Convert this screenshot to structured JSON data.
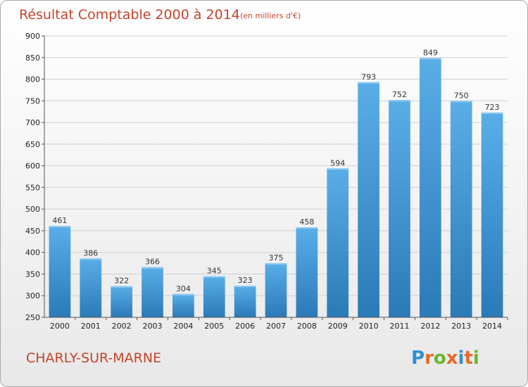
{
  "chart_data": {
    "type": "bar",
    "title": "Résultat Comptable 2000 à 2014",
    "subtitle": "(en milliers d'€)",
    "categories": [
      "2000",
      "2001",
      "2002",
      "2003",
      "2004",
      "2005",
      "2006",
      "2007",
      "2008",
      "2009",
      "2010",
      "2011",
      "2012",
      "2013",
      "2014"
    ],
    "values": [
      461,
      386,
      322,
      366,
      304,
      345,
      323,
      375,
      458,
      594,
      793,
      752,
      849,
      750,
      723
    ],
    "ylim": [
      250,
      900
    ],
    "yticks": [
      250,
      300,
      350,
      400,
      450,
      500,
      550,
      600,
      650,
      700,
      750,
      800,
      850,
      900
    ],
    "grid": true,
    "bar_color_top": "#5aaee8",
    "bar_color_bottom": "#2a7ab8"
  },
  "footer": {
    "place_name": "CHARLY-SUR-MARNE",
    "logo_text": "Proxiti",
    "logo_colors": [
      "#2e8fd6",
      "#e8692a",
      "#66b82e",
      "#e8692a",
      "#2e8fd6",
      "#e8692a",
      "#66b82e"
    ]
  }
}
